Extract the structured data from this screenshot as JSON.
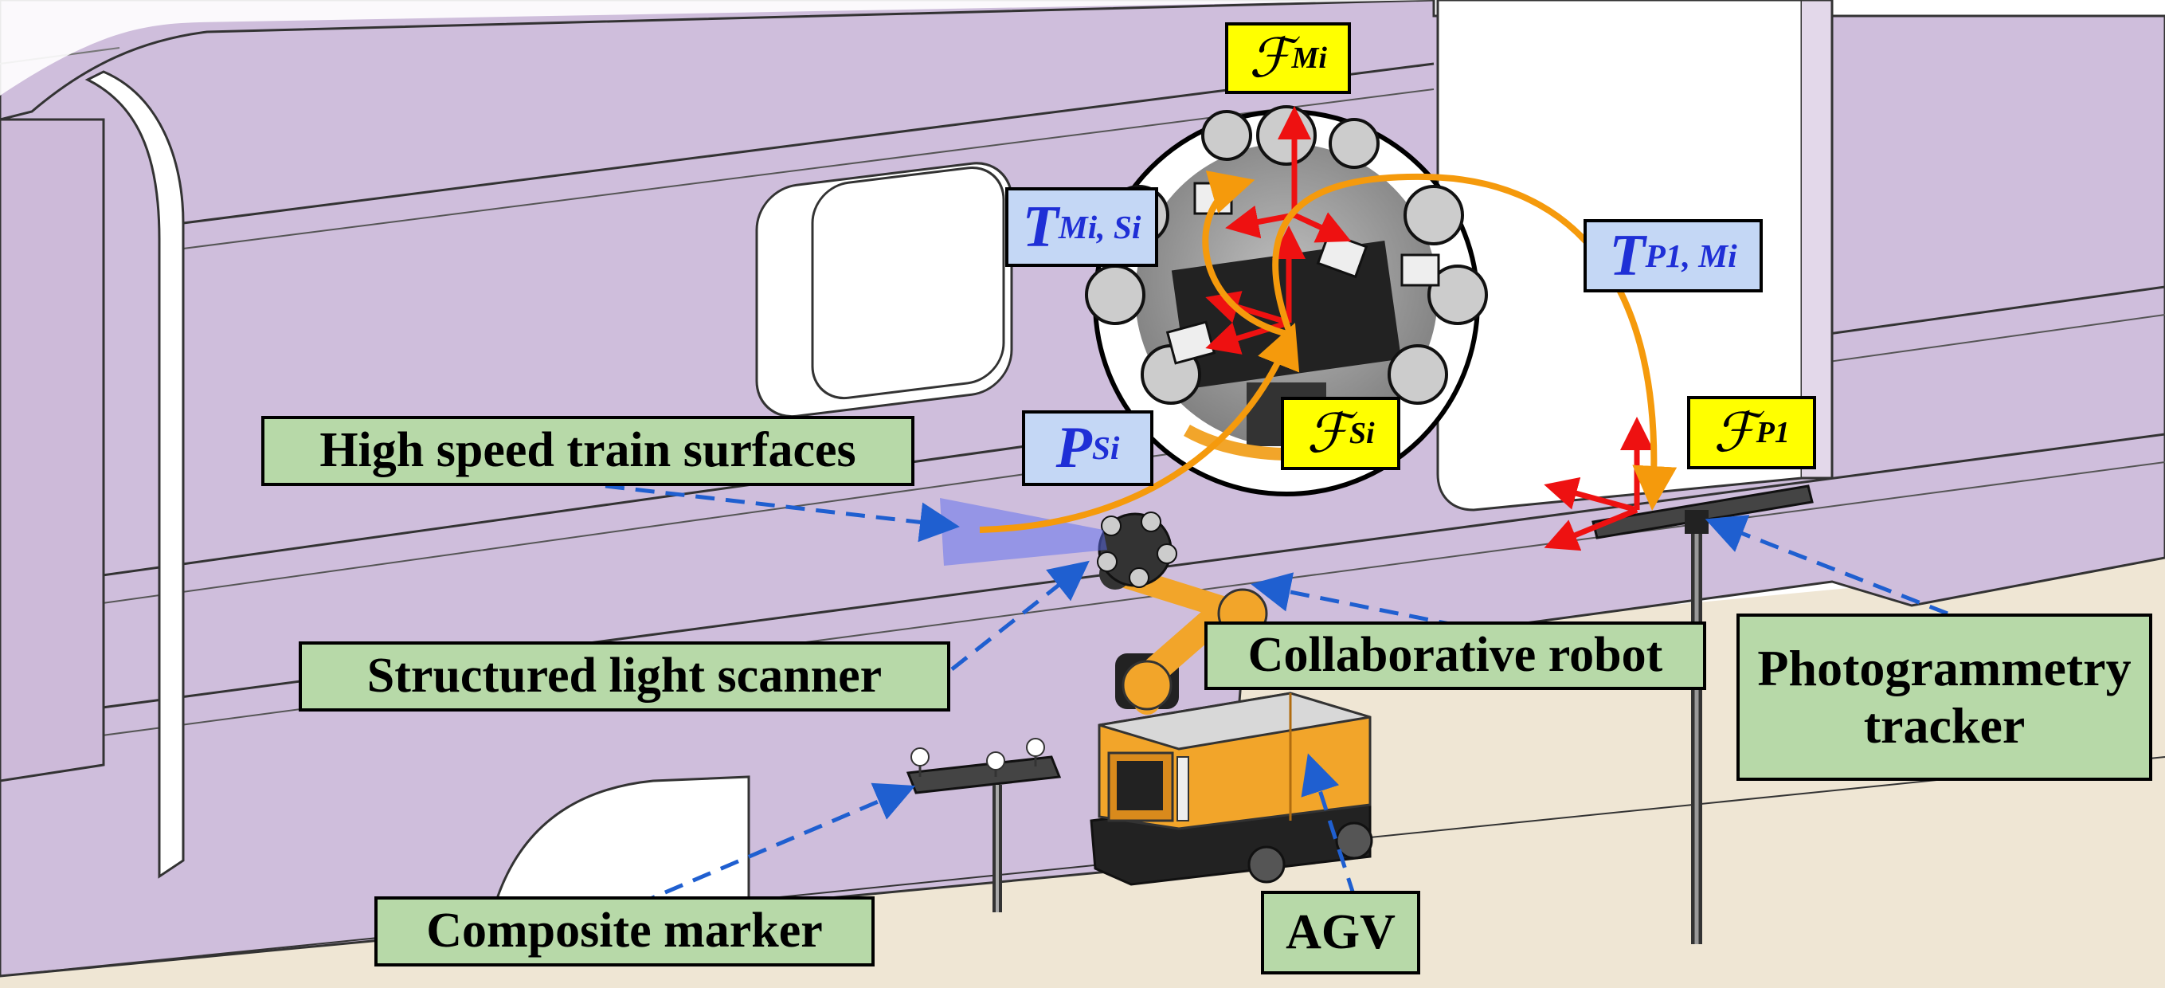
{
  "labels": {
    "surfaces": "High speed train surfaces",
    "scanner": "Structured light scanner",
    "robot": "Collaborative robot",
    "tracker_line1": "Photogrammetry",
    "tracker_line2": "tracker",
    "marker": "Composite marker",
    "agv": "AGV"
  },
  "frames": {
    "f_symbol": "ℱ",
    "f_mi_sub": "Mi",
    "f_si_sub": "Si",
    "f_p1_sub": "P1",
    "t_symbol": "T",
    "t_mi_si_sub": "Mi, Si",
    "t_p1_mi_sub": "P1, Mi",
    "p_symbol": "P",
    "p_si_sub": "Si"
  },
  "colors": {
    "train_body": "#cfbedc",
    "floor": "#efe6d4",
    "label_green": "#b7d9a8",
    "label_yellow": "#ffff00",
    "label_blue": "#c4d7f5",
    "text_blue": "#1f2fd6",
    "pointer_arrow": "#1f5fd0",
    "transform_arrow": "#f59a0c",
    "axis_red": "#ee1111",
    "robot_orange": "#f2a52a"
  }
}
